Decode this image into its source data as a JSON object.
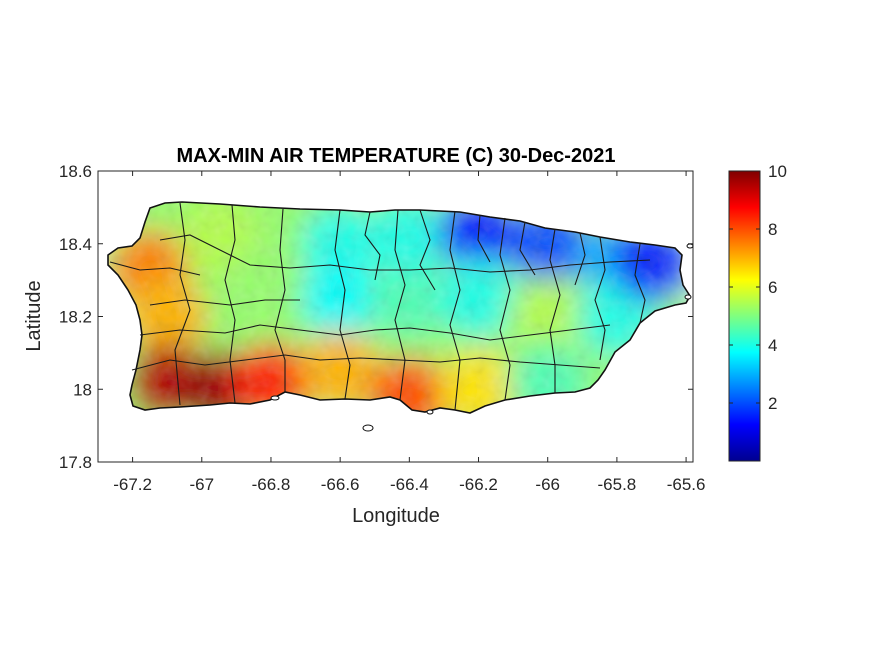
{
  "title": "MAX-MIN AIR TEMPERATURE (C) 30-Dec-2021",
  "chart_data": {
    "type": "heatmap",
    "title": "MAX-MIN AIR TEMPERATURE (C) 30-Dec-2021",
    "xlabel": "Longitude",
    "ylabel": "Latitude",
    "xlim": [
      -67.3,
      -65.58
    ],
    "ylim": [
      17.8,
      18.6
    ],
    "x_ticks": [
      -67.2,
      -67,
      -66.8,
      -66.6,
      -66.4,
      -66.2,
      -66,
      -65.8,
      -65.6
    ],
    "x_tick_labels": [
      "-67.2",
      "-67",
      "-66.8",
      "-66.6",
      "-66.4",
      "-66.2",
      "-66",
      "-65.8",
      "-65.6"
    ],
    "y_ticks": [
      17.8,
      18,
      18.2,
      18.4,
      18.6
    ],
    "y_tick_labels": [
      "17.8",
      "18",
      "18.2",
      "18.4",
      "18.6"
    ],
    "colorbar": {
      "colormap": "jet",
      "range": [
        0,
        10
      ],
      "ticks": [
        2,
        4,
        6,
        8,
        10
      ],
      "tick_labels": [
        "2",
        "4",
        "6",
        "8",
        "10"
      ]
    },
    "grid": false,
    "region": "Puerto Rico",
    "field_samples": [
      {
        "lon": -67.15,
        "lat": 18.33,
        "value": 7.5
      },
      {
        "lon": -67.1,
        "lat": 18.2,
        "value": 7.0
      },
      {
        "lon": -67.1,
        "lat": 18.02,
        "value": 9.5
      },
      {
        "lon": -66.95,
        "lat": 18.0,
        "value": 9.8
      },
      {
        "lon": -66.8,
        "lat": 18.02,
        "value": 8.5
      },
      {
        "lon": -66.95,
        "lat": 18.42,
        "value": 5.5
      },
      {
        "lon": -66.8,
        "lat": 18.3,
        "value": 5.2
      },
      {
        "lon": -66.6,
        "lat": 18.4,
        "value": 4.0
      },
      {
        "lon": -66.6,
        "lat": 18.25,
        "value": 3.8
      },
      {
        "lon": -66.6,
        "lat": 18.05,
        "value": 7.0
      },
      {
        "lon": -66.4,
        "lat": 17.98,
        "value": 8.0
      },
      {
        "lon": -66.4,
        "lat": 18.25,
        "value": 4.5
      },
      {
        "lon": -66.4,
        "lat": 18.42,
        "value": 4.0
      },
      {
        "lon": -66.2,
        "lat": 18.43,
        "value": 1.5
      },
      {
        "lon": -66.2,
        "lat": 18.25,
        "value": 4.0
      },
      {
        "lon": -66.2,
        "lat": 18.0,
        "value": 6.5
      },
      {
        "lon": -66.0,
        "lat": 18.4,
        "value": 2.0
      },
      {
        "lon": -66.0,
        "lat": 18.2,
        "value": 5.5
      },
      {
        "lon": -66.0,
        "lat": 18.02,
        "value": 4.5
      },
      {
        "lon": -65.8,
        "lat": 18.35,
        "value": 3.0
      },
      {
        "lon": -65.8,
        "lat": 18.2,
        "value": 4.0
      },
      {
        "lon": -65.7,
        "lat": 18.35,
        "value": 1.5
      }
    ]
  }
}
